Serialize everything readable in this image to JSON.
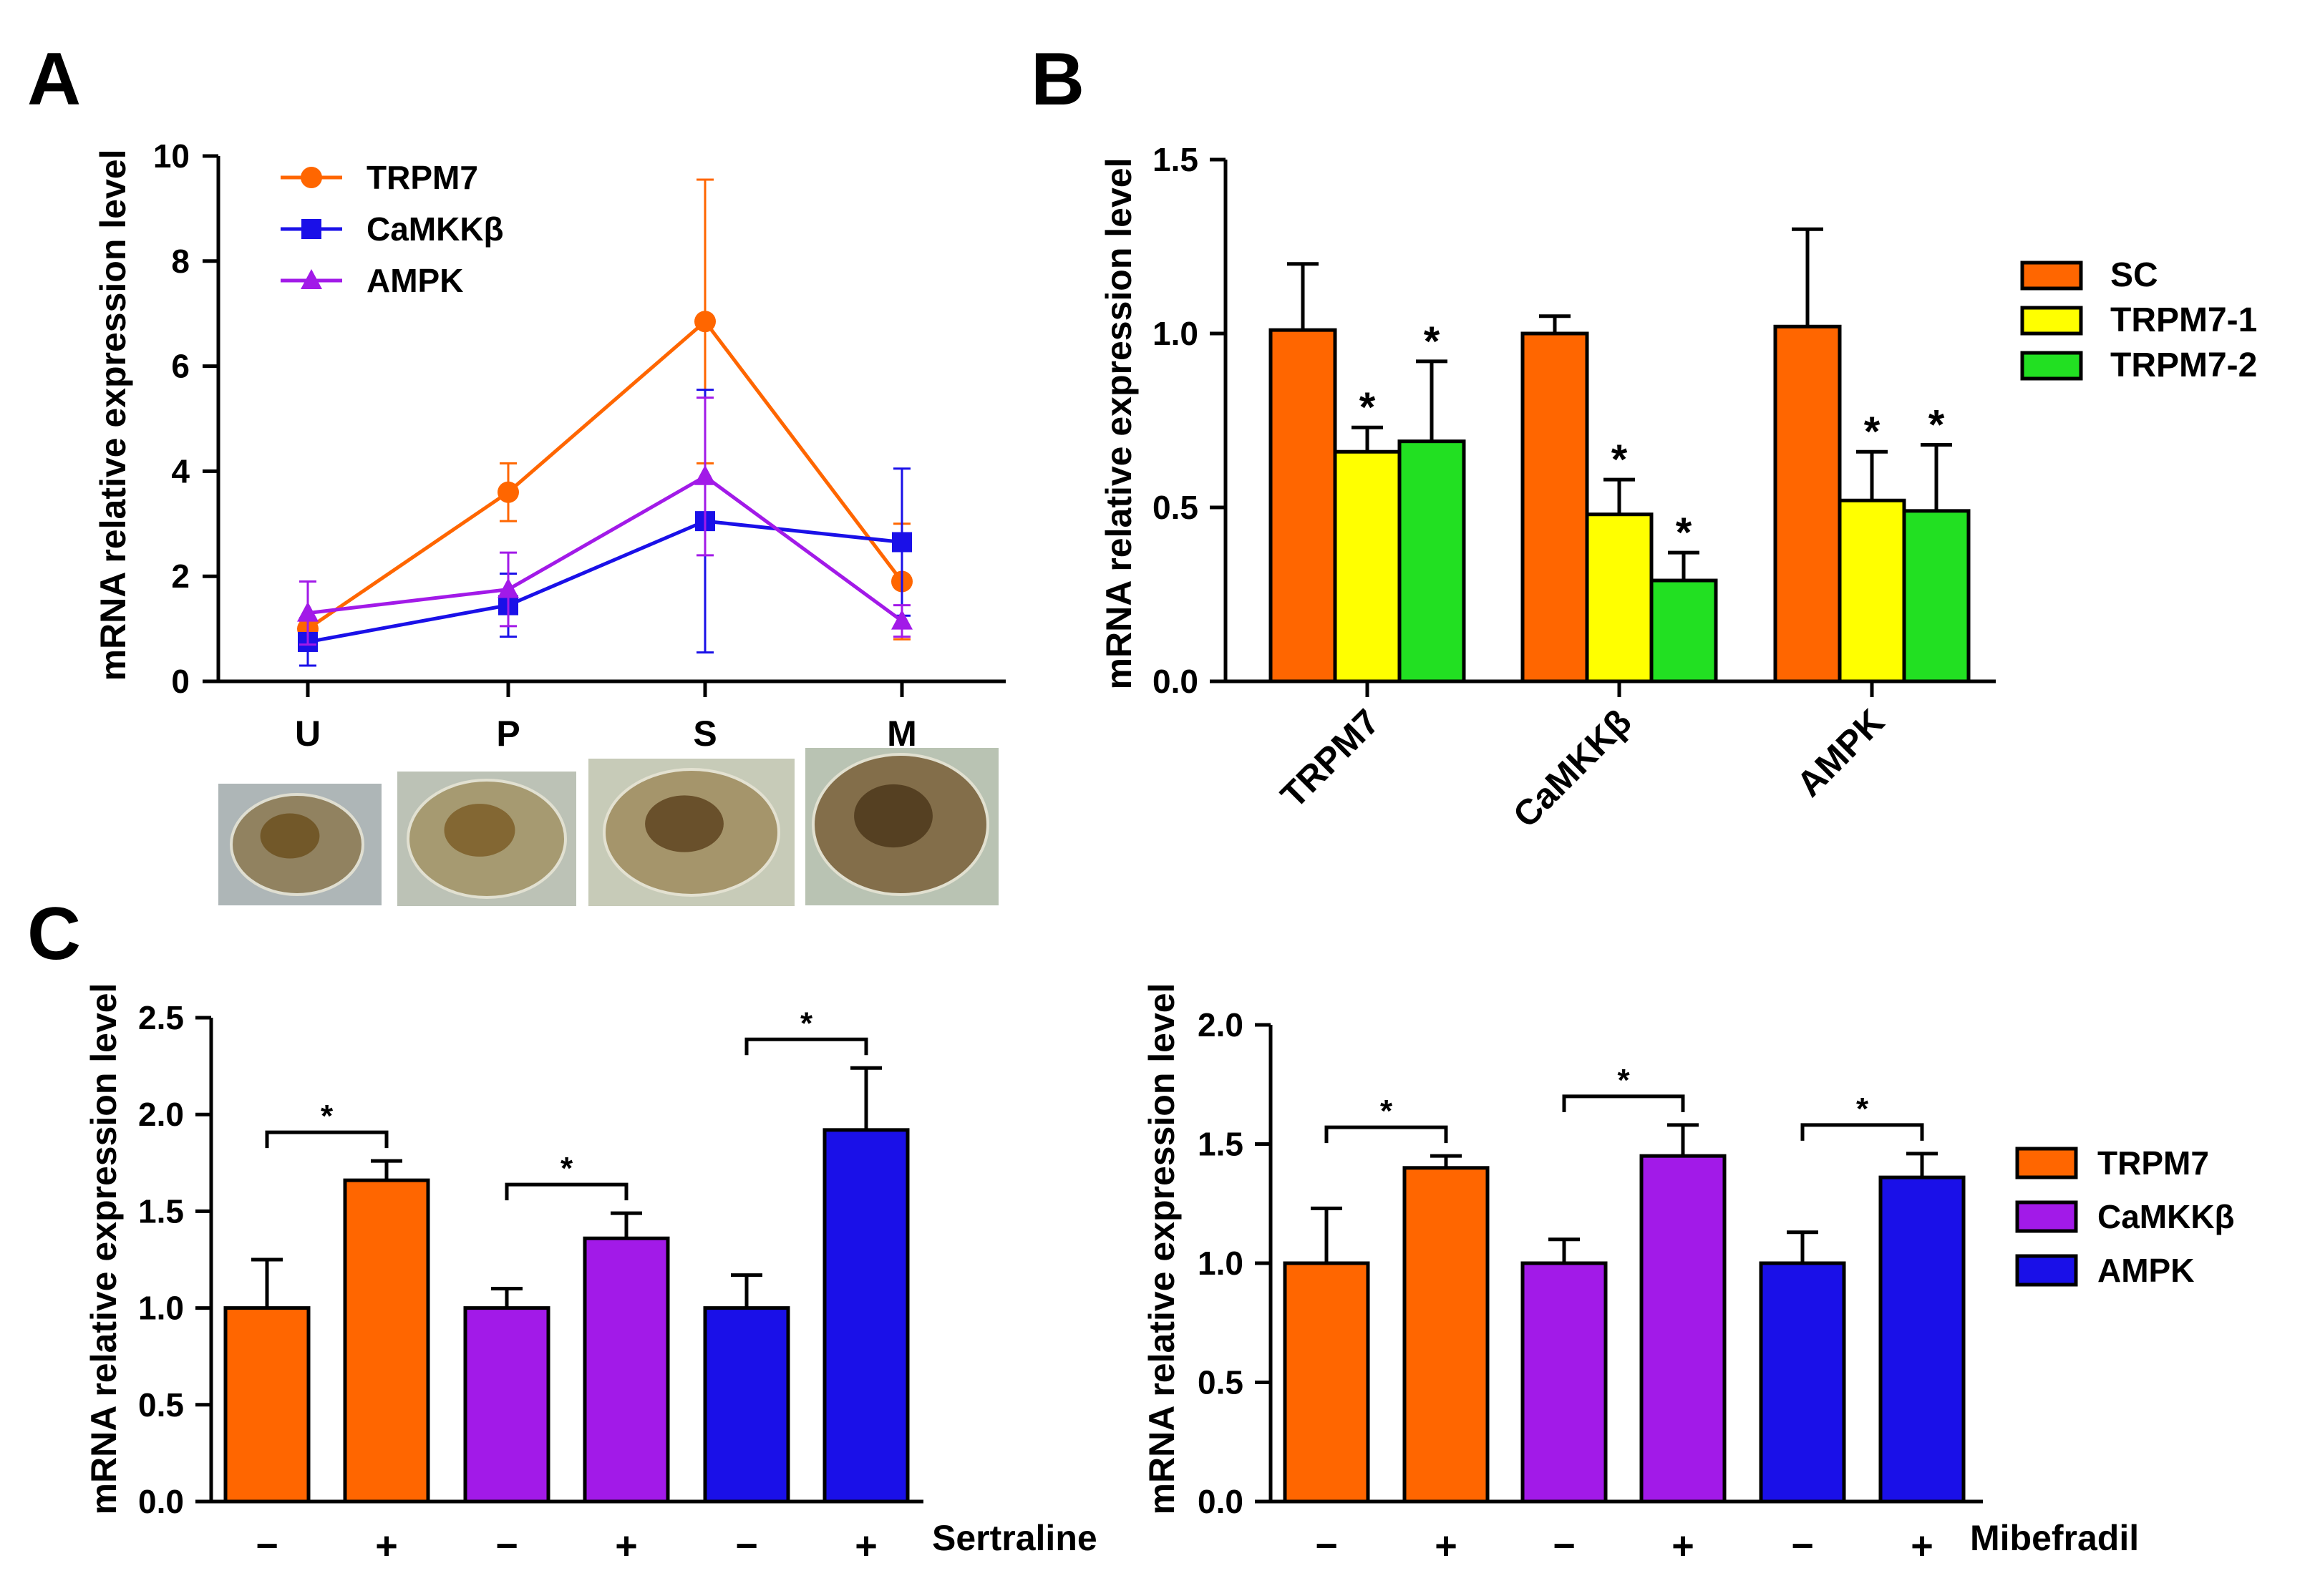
{
  "panels": {
    "a": "A",
    "b": "B",
    "c": "C"
  },
  "colors": {
    "orange": "#ff6600",
    "blue": "#1a10e8",
    "purple": "#a21ae8",
    "yellow": "#ffff00",
    "green": "#22e022",
    "black": "#000000"
  },
  "photo_icons": [
    "veliger-larva-photo",
    "pediveliger-larva-photo",
    "spat-larva-photo",
    "juvenile-photo"
  ],
  "chart_data": [
    {
      "id": "A",
      "type": "line",
      "ylabel": "mRNA relative expression level",
      "x": [
        "U",
        "P",
        "S",
        "M"
      ],
      "ylim": [
        0,
        10
      ],
      "yticks": [
        0,
        2,
        4,
        6,
        8,
        10
      ],
      "legend": "top-left",
      "series": [
        {
          "name": "TRPM7",
          "color": "#ff6600",
          "marker": "circle",
          "values": [
            1.0,
            3.6,
            6.85,
            1.9
          ],
          "err": [
            0.15,
            0.55,
            2.7,
            1.1
          ]
        },
        {
          "name": "CaMKKβ",
          "color": "#1a10e8",
          "marker": "square",
          "values": [
            0.75,
            1.45,
            3.05,
            2.65
          ],
          "err": [
            0.45,
            0.6,
            2.5,
            1.4
          ]
        },
        {
          "name": "AMPK",
          "color": "#a21ae8",
          "marker": "triangle",
          "values": [
            1.3,
            1.75,
            3.9,
            1.15
          ],
          "err": [
            0.6,
            0.7,
            1.5,
            0.3
          ]
        }
      ]
    },
    {
      "id": "B",
      "type": "bar",
      "ylabel": "mRNA relative expression level",
      "categories": [
        "TRPM7",
        "CaMKKβ",
        "AMPK"
      ],
      "ylim": [
        0,
        1.5
      ],
      "yticks": [
        "0.0",
        "0.5",
        "1.0",
        "1.5"
      ],
      "legend": "right",
      "significance": "*",
      "series": [
        {
          "name": "SC",
          "color": "#ff6600",
          "values": [
            1.01,
            1.0,
            1.02
          ],
          "err": [
            0.19,
            0.05,
            0.28
          ],
          "sig": [
            false,
            false,
            false
          ]
        },
        {
          "name": "TRPM7-1",
          "color": "#ffff00",
          "values": [
            0.66,
            0.48,
            0.52
          ],
          "err": [
            0.07,
            0.1,
            0.14
          ],
          "sig": [
            true,
            true,
            true
          ]
        },
        {
          "name": "TRPM7-2",
          "color": "#22e022",
          "values": [
            0.69,
            0.29,
            0.49
          ],
          "err": [
            0.23,
            0.08,
            0.19
          ],
          "sig": [
            true,
            true,
            true
          ]
        }
      ]
    },
    {
      "id": "C-left",
      "type": "bar",
      "ylabel": "mRNA relative expression level",
      "treatment": "Sertraline",
      "conditions": [
        "−",
        "+",
        "−",
        "+",
        "−",
        "+"
      ],
      "ylim": [
        0,
        2.5
      ],
      "yticks": [
        "0.0",
        "0.5",
        "1.0",
        "1.5",
        "2.0",
        "2.5"
      ],
      "significance": "*",
      "series": [
        {
          "name": "TRPM7",
          "color": "#ff6600",
          "values": [
            1.0,
            1.66
          ],
          "err": [
            0.25,
            0.1
          ]
        },
        {
          "name": "CaMKKβ",
          "color": "#a21ae8",
          "values": [
            1.0,
            1.36
          ],
          "err": [
            0.1,
            0.13
          ]
        },
        {
          "name": "AMPK",
          "color": "#1a10e8",
          "values": [
            1.0,
            1.92
          ],
          "err": [
            0.17,
            0.32
          ]
        }
      ]
    },
    {
      "id": "C-right",
      "type": "bar",
      "ylabel": "mRNA relative expression level",
      "treatment": "Mibefradil",
      "conditions": [
        "−",
        "+",
        "−",
        "+",
        "−",
        "+"
      ],
      "ylim": [
        0,
        2.0
      ],
      "yticks": [
        "0.0",
        "0.5",
        "1.0",
        "1.5",
        "2.0"
      ],
      "legend": "right",
      "significance": "*",
      "series": [
        {
          "name": "TRPM7",
          "color": "#ff6600",
          "values": [
            1.0,
            1.4
          ],
          "err": [
            0.23,
            0.05
          ]
        },
        {
          "name": "CaMKKβ",
          "color": "#a21ae8",
          "values": [
            1.0,
            1.45
          ],
          "err": [
            0.1,
            0.13
          ]
        },
        {
          "name": "AMPK",
          "color": "#1a10e8",
          "values": [
            1.0,
            1.36
          ],
          "err": [
            0.13,
            0.1
          ]
        }
      ]
    }
  ]
}
